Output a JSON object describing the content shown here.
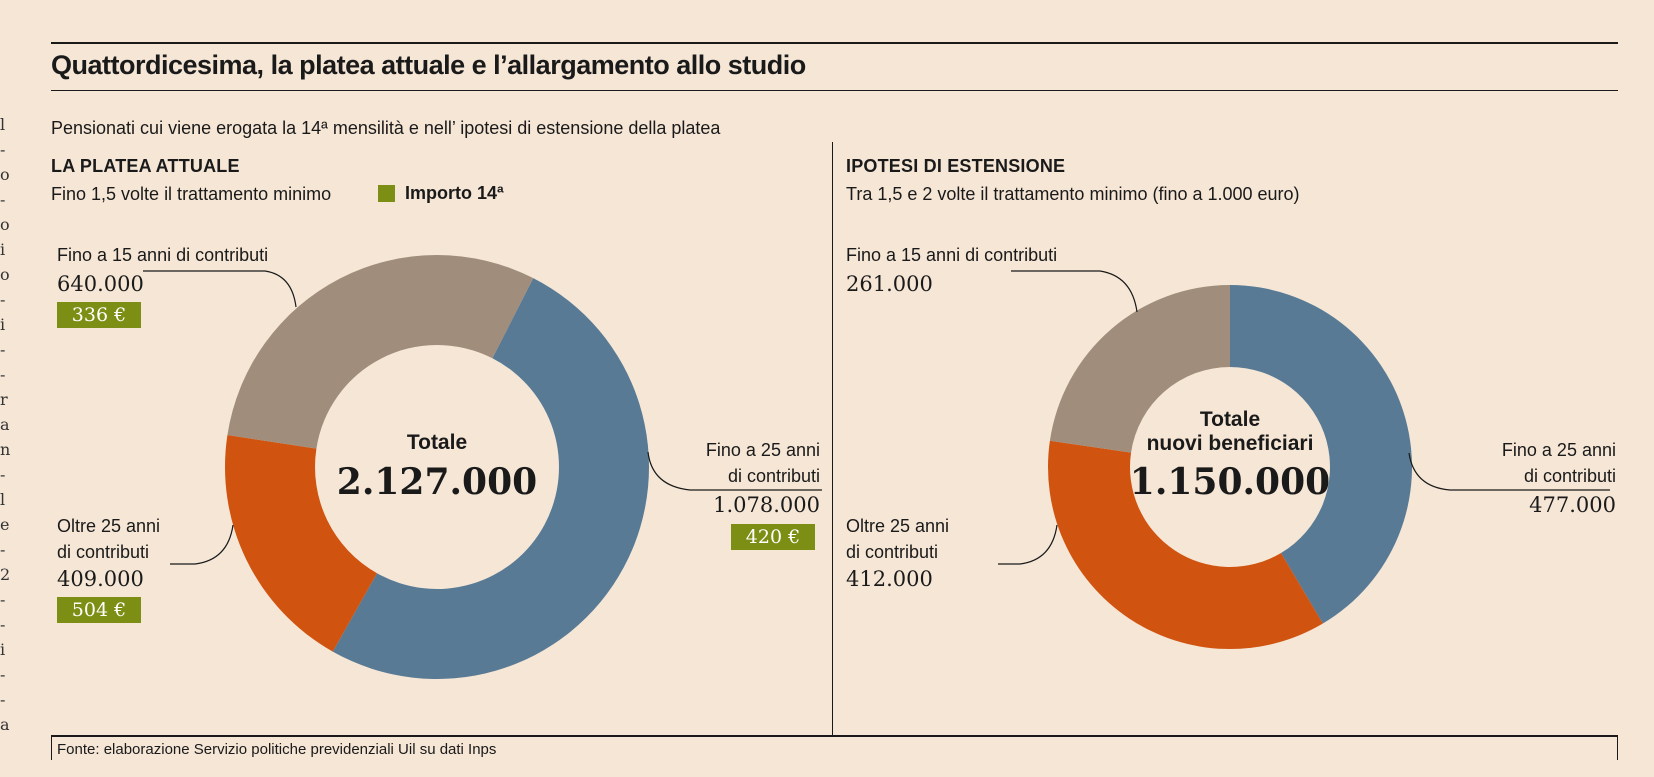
{
  "header": {
    "title": "Quattordicesima, la platea attuale e l’allargamento allo studio",
    "subtitle": "Pensionati cui viene erogata la 14ª mensilità e nell’ ipotesi di estensione della platea"
  },
  "left_panel": {
    "heading": "LA PLATEA ATTUALE",
    "subheading": "Fino 1,5 volte il trattamento minimo",
    "legend_label": "Importo 14ª",
    "legend_color": "#7c8f14",
    "center_title": "Totale",
    "center_value": "2.127.000",
    "labels": {
      "seg1_line1": "Fino a 15 anni di contributi",
      "seg1_value": "640.000",
      "seg1_badge": "336 €",
      "seg2_line1": "Fino a 25 anni",
      "seg2_line2": "di contributi",
      "seg2_value": "1.078.000",
      "seg2_badge": "420 €",
      "seg3_line1": "Oltre 25 anni",
      "seg3_line2": "di contributi",
      "seg3_value": "409.000",
      "seg3_badge": "504 €"
    }
  },
  "right_panel": {
    "heading": "IPOTESI DI ESTENSIONE",
    "subheading": "Tra 1,5 e 2 volte il trattamento minimo (fino a 1.000 euro)",
    "center_title_1": "Totale",
    "center_title_2": "nuovi beneficiari",
    "center_value": "1.150.000",
    "labels": {
      "seg1_line1": "Fino a 15 anni di contributi",
      "seg1_value": "261.000",
      "seg2_line1": "Fino a 25 anni",
      "seg2_line2": "di contributi",
      "seg2_value": "477.000",
      "seg3_line1": "Oltre 25 anni",
      "seg3_line2": "di contributi",
      "seg3_value": "412.000"
    }
  },
  "footer": {
    "source": "Fonte: elaborazione Servizio politiche previdenziali Uil su dati Inps"
  },
  "margin_glyphs": [
    "l",
    "-",
    "o",
    "-",
    "o",
    "i",
    "o",
    "-",
    "i",
    "-",
    "-",
    "r",
    "a",
    "n",
    "-",
    "l",
    "e",
    "-",
    "2",
    "-",
    "-",
    "i",
    "-",
    "-",
    "a"
  ],
  "colors": {
    "fino15": "#a08d7b",
    "fino25": "#587a95",
    "oltre25": "#d05310",
    "background": "#f5e6d6"
  },
  "chart_data": [
    {
      "type": "pie",
      "title": "LA PLATEA ATTUALE",
      "categories": [
        "Fino a 15 anni di contributi",
        "Fino a 25 anni di contributi",
        "Oltre 25 anni di contributi"
      ],
      "values": [
        640000,
        1078000,
        409000
      ],
      "importo_14": [
        "336 €",
        "420 €",
        "504 €"
      ],
      "total": 2127000,
      "donut": true
    },
    {
      "type": "pie",
      "title": "IPOTESI DI ESTENSIONE",
      "categories": [
        "Fino a 15 anni di contributi",
        "Fino a 25 anni di contributi",
        "Oltre 25 anni di contributi"
      ],
      "values": [
        261000,
        477000,
        412000
      ],
      "total": 1150000,
      "donut": true
    }
  ]
}
